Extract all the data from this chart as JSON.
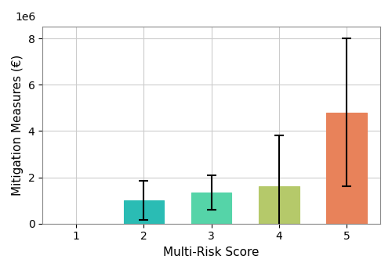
{
  "categories": [
    1,
    2,
    3,
    4,
    5
  ],
  "values": [
    0.0,
    1000000,
    1350000,
    1600000,
    4800000
  ],
  "errors": [
    0.0,
    850000,
    750000,
    2200000,
    3200000
  ],
  "bar_colors": [
    "#ffffff",
    "#2abcb4",
    "#55d4a8",
    "#b5c96a",
    "#e8825a"
  ],
  "xlabel": "Multi-Risk Score",
  "ylabel": "Mitigation Measures (€)",
  "ylim": [
    0,
    8500000
  ],
  "yticks": [
    0,
    2000000,
    4000000,
    6000000,
    8000000
  ],
  "ytick_labels": [
    "0",
    "2",
    "4",
    "6",
    "8"
  ],
  "background_color": "#ffffff",
  "grid_color": "#cccccc",
  "bar_width": 0.6,
  "error_capsize": 4,
  "error_linewidth": 1.5
}
